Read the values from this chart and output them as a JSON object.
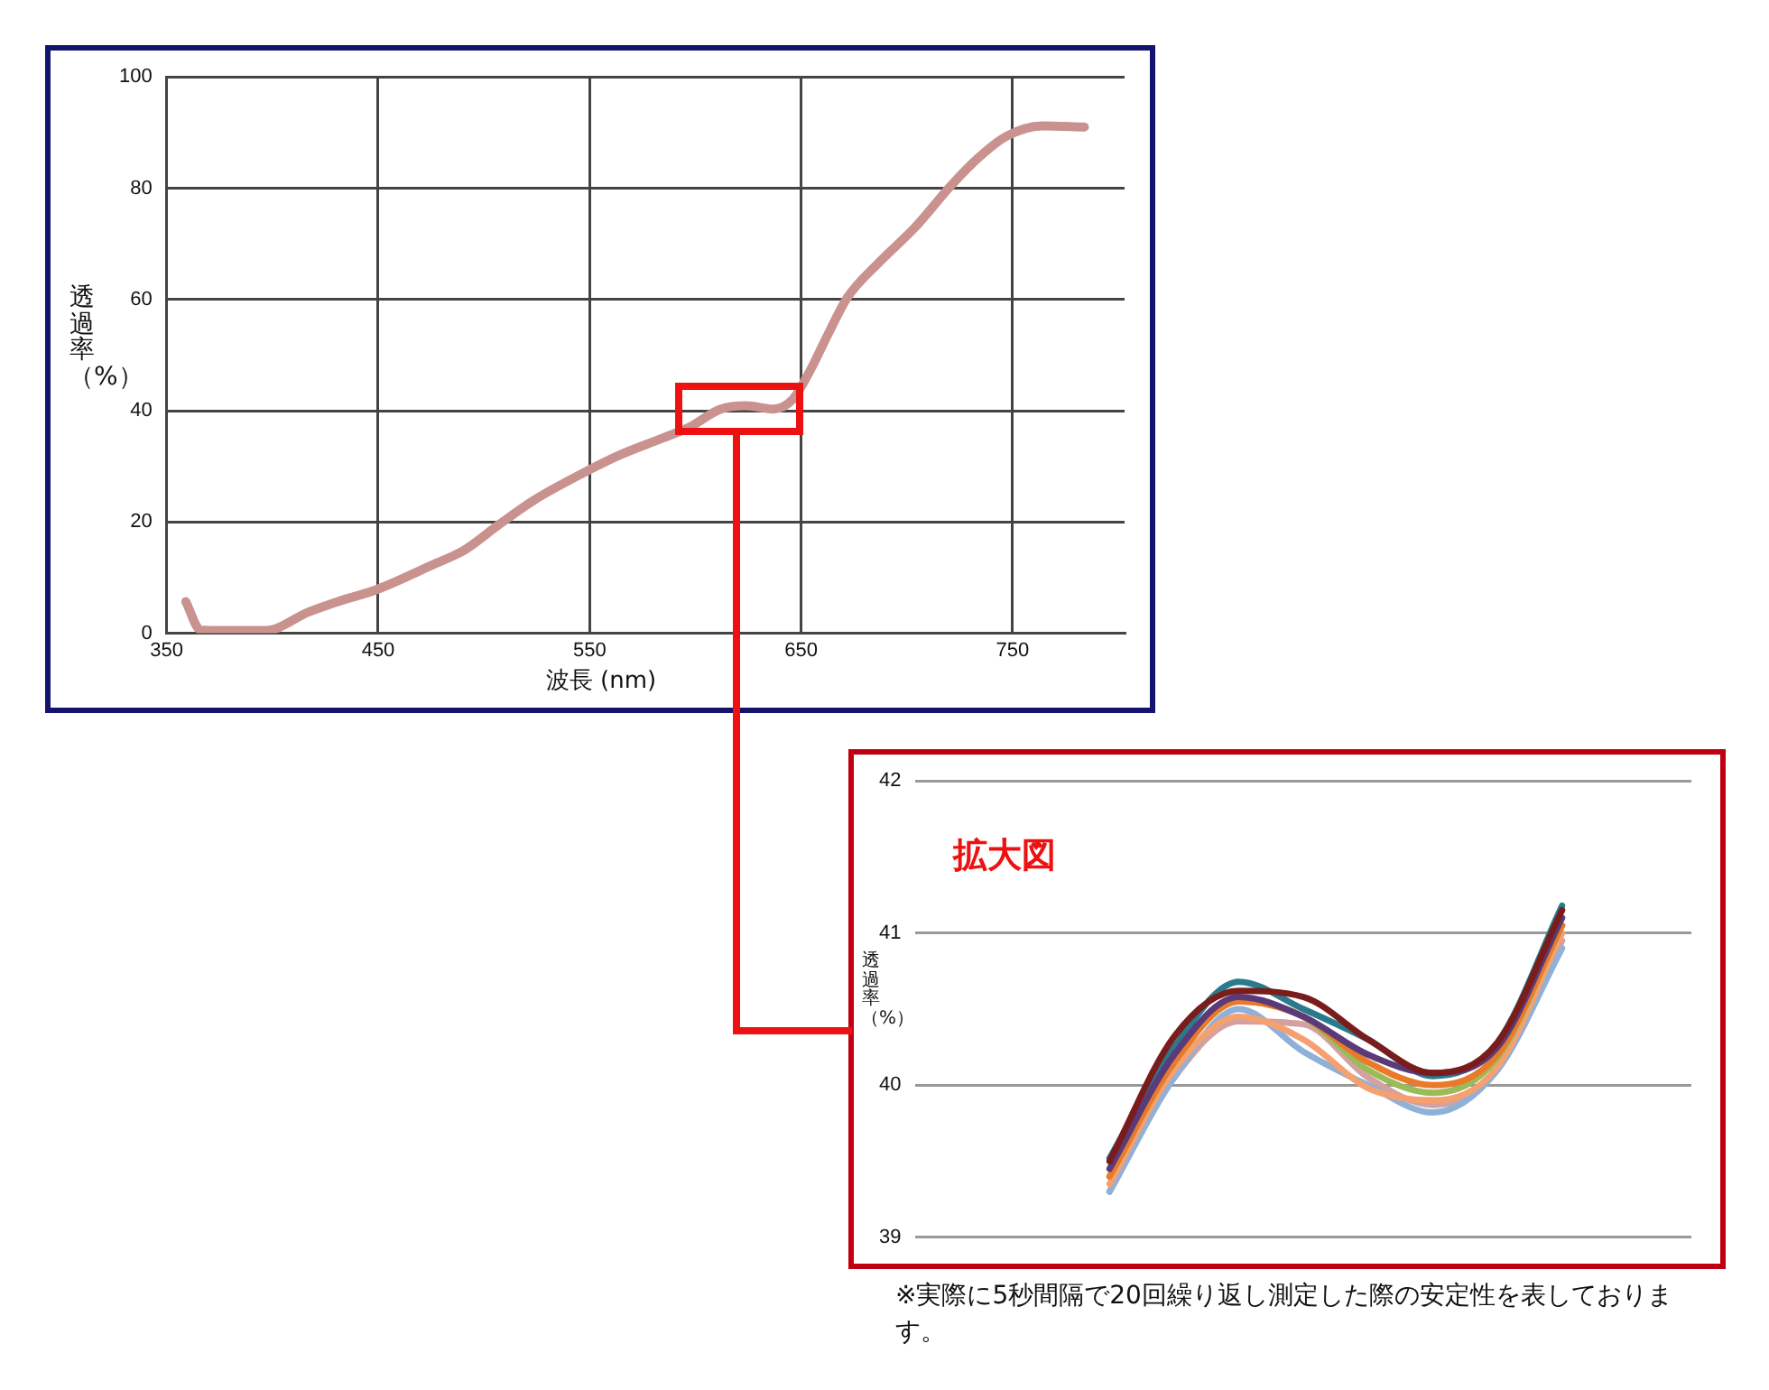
{
  "chart_data": [
    {
      "type": "line",
      "xlabel": "波長 (nm)",
      "ylabel": "透過率（%）",
      "x": [
        359,
        366,
        377,
        397,
        417,
        431,
        449,
        474,
        491,
        507,
        524,
        551,
        564,
        584,
        597,
        612,
        624,
        637,
        646,
        654,
        664,
        672,
        687,
        704,
        721,
        734,
        747,
        764,
        784
      ],
      "series": [
        {
          "color": "#c9928f",
          "values": [
            5.7,
            0.6,
            0.5,
            0.5,
            3.8,
            5.7,
            7.8,
            12,
            15,
            19.5,
            24,
            29.6,
            32,
            35,
            37,
            40.3,
            40.9,
            40.3,
            42,
            47,
            54.7,
            60.4,
            66.7,
            73,
            80.5,
            85.5,
            89.3,
            91.2,
            91
          ]
        }
      ],
      "xlim": [
        350,
        803
      ],
      "xticks": [
        350,
        450,
        550,
        650,
        750
      ],
      "ylim": [
        0,
        100
      ],
      "yticks": [
        0,
        20,
        40,
        60,
        80,
        100
      ],
      "grid": true
    },
    {
      "type": "line",
      "title": "拡大図",
      "ylabel": "透過率（%）",
      "categories": [
        null,
        null,
        null,
        null,
        null,
        null,
        null,
        null,
        null,
        null,
        null,
        null,
        null
      ],
      "series": [
        {
          "color": "#7b1c1c",
          "values": [
            null,
            null,
            null,
            39.5,
            40.32,
            40.62,
            40.58,
            40.3,
            40.08,
            40.28,
            41.15,
            null,
            null
          ]
        },
        {
          "color": "#5b3a7a",
          "values": [
            null,
            null,
            null,
            39.45,
            40.2,
            40.58,
            40.45,
            40.2,
            40.08,
            40.25,
            41.1,
            null,
            null
          ]
        },
        {
          "color": "#e87a2a",
          "values": [
            null,
            null,
            null,
            39.4,
            40.15,
            40.55,
            40.45,
            40.15,
            40.0,
            40.2,
            41.05,
            null,
            null
          ]
        },
        {
          "color": "#9bbb59",
          "values": [
            null,
            null,
            null,
            39.4,
            40.15,
            40.55,
            40.45,
            40.1,
            39.95,
            40.18,
            41.05,
            null,
            null
          ]
        },
        {
          "color": "#f4a070",
          "values": [
            null,
            null,
            null,
            39.35,
            40.1,
            40.45,
            40.3,
            39.98,
            39.9,
            40.12,
            41.0,
            null,
            null
          ]
        },
        {
          "color": "#8fb0d8",
          "values": [
            null,
            null,
            null,
            39.3,
            40.05,
            40.5,
            40.22,
            40.0,
            39.82,
            40.1,
            40.9,
            null,
            null
          ]
        },
        {
          "color": "#d4a0a0",
          "values": [
            null,
            null,
            null,
            39.3,
            40.05,
            40.42,
            40.4,
            40.05,
            39.87,
            40.1,
            40.95,
            null,
            null
          ]
        },
        {
          "color": "#2a7a8c",
          "values": [
            null,
            null,
            null,
            39.52,
            40.25,
            40.68,
            40.5,
            40.3,
            40.06,
            40.28,
            41.18,
            null,
            null
          ]
        }
      ],
      "ylim": [
        39,
        42
      ],
      "yticks": [
        39,
        40,
        41,
        42
      ],
      "grid": "y",
      "tick_labels": "y",
      "annotations": [
        "※実際に5秒間隔で20回繰り返し測定した際の安定性を表しております。"
      ]
    }
  ]
}
